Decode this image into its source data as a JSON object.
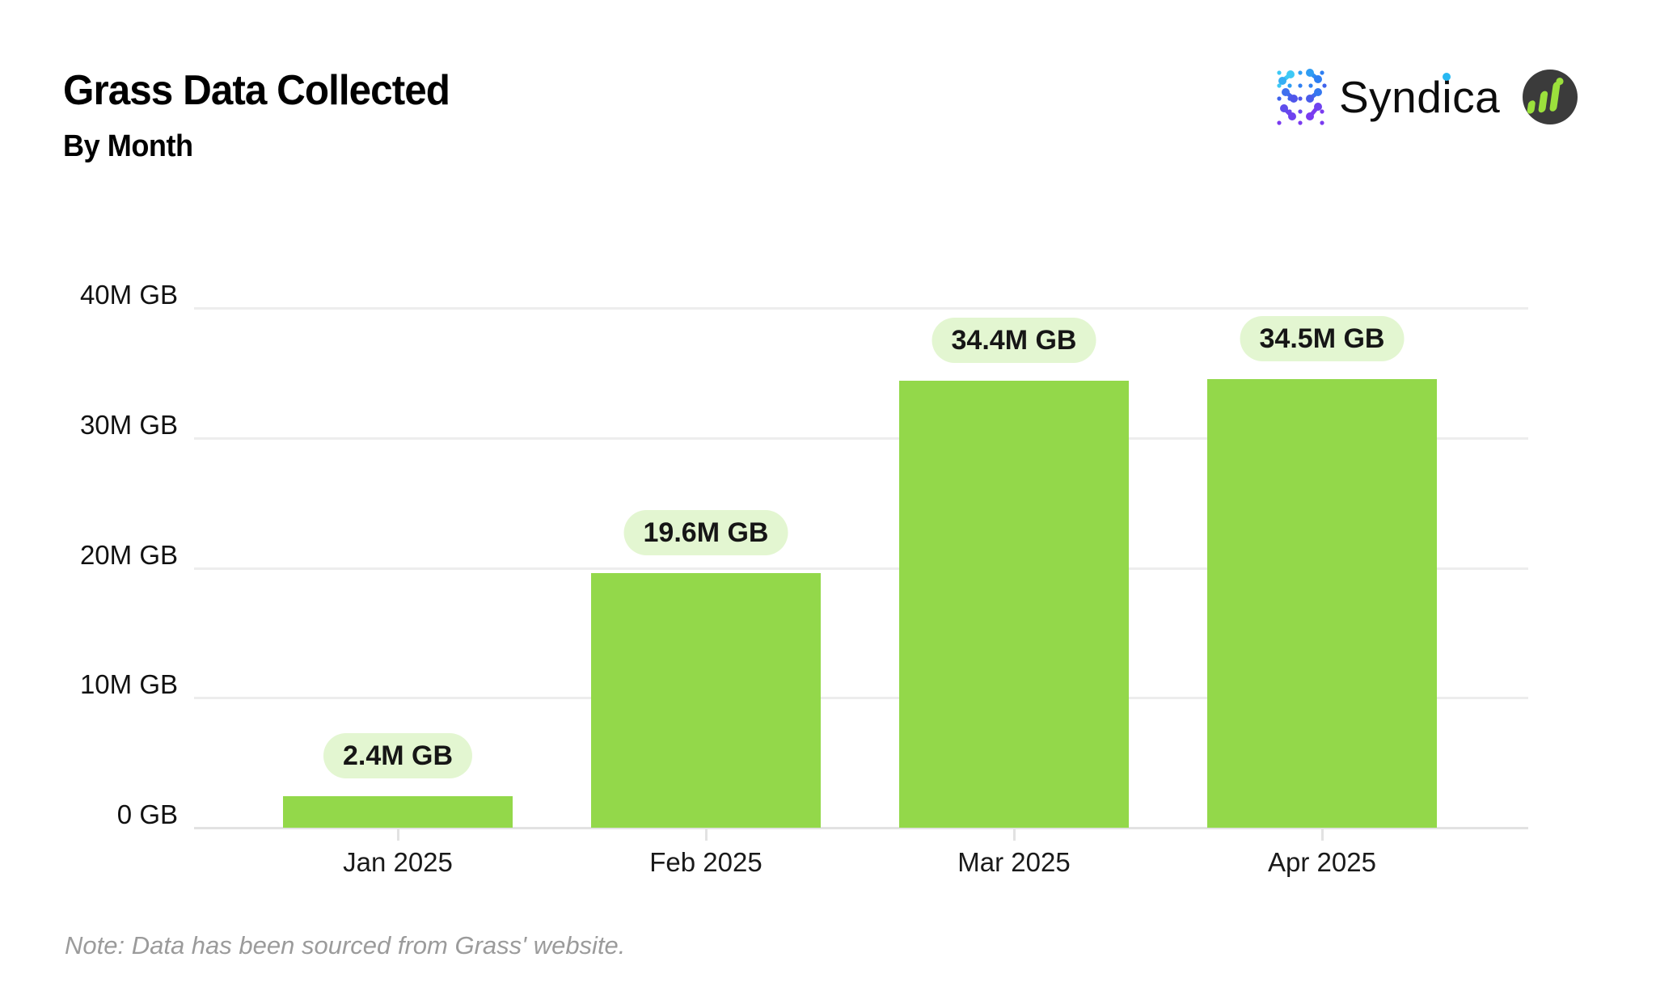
{
  "header": {
    "title": "Grass Data Collected",
    "subtitle": "By Month"
  },
  "logo": {
    "syndica": {
      "pre": "Synd",
      "dot_letter": "i",
      "post": "ca"
    }
  },
  "chart_data": {
    "type": "bar",
    "title": "Grass Data Collected",
    "subtitle": "By Month",
    "categories": [
      "Jan 2025",
      "Feb 2025",
      "Mar 2025",
      "Apr 2025"
    ],
    "values": [
      2.4,
      19.6,
      34.4,
      34.5
    ],
    "value_unit": "M GB",
    "value_labels": [
      "2.4M GB",
      "19.6M GB",
      "34.4M GB",
      "34.5M GB"
    ],
    "xlabel": "",
    "ylabel": "",
    "ylim": [
      0,
      40
    ],
    "yticks": [
      {
        "value": 0,
        "label": "0 GB"
      },
      {
        "value": 10,
        "label": "10M GB"
      },
      {
        "value": 20,
        "label": "20M GB"
      },
      {
        "value": 30,
        "label": "30M GB"
      },
      {
        "value": 40,
        "label": "40M GB"
      }
    ],
    "grid": "horizontal",
    "legend": "none",
    "bar_color": "#93d84a",
    "badge_bg": "#e3f6d1",
    "badge_text_color": "#161616"
  },
  "note": {
    "text": "Note: Data has been sourced from Grass' website."
  },
  "colors": {
    "background": "#ffffff",
    "gridline": "#ededed",
    "axis": "#e2e2e2",
    "title_text": "#000000",
    "note_text": "#9b9b9b",
    "syndica_blue": "#2f7ff2",
    "syndica_cyan": "#3ec9f5",
    "syndica_purple": "#7a3bf0",
    "grass_circle": "#3b3b3b",
    "grass_green": "#9be03c"
  }
}
